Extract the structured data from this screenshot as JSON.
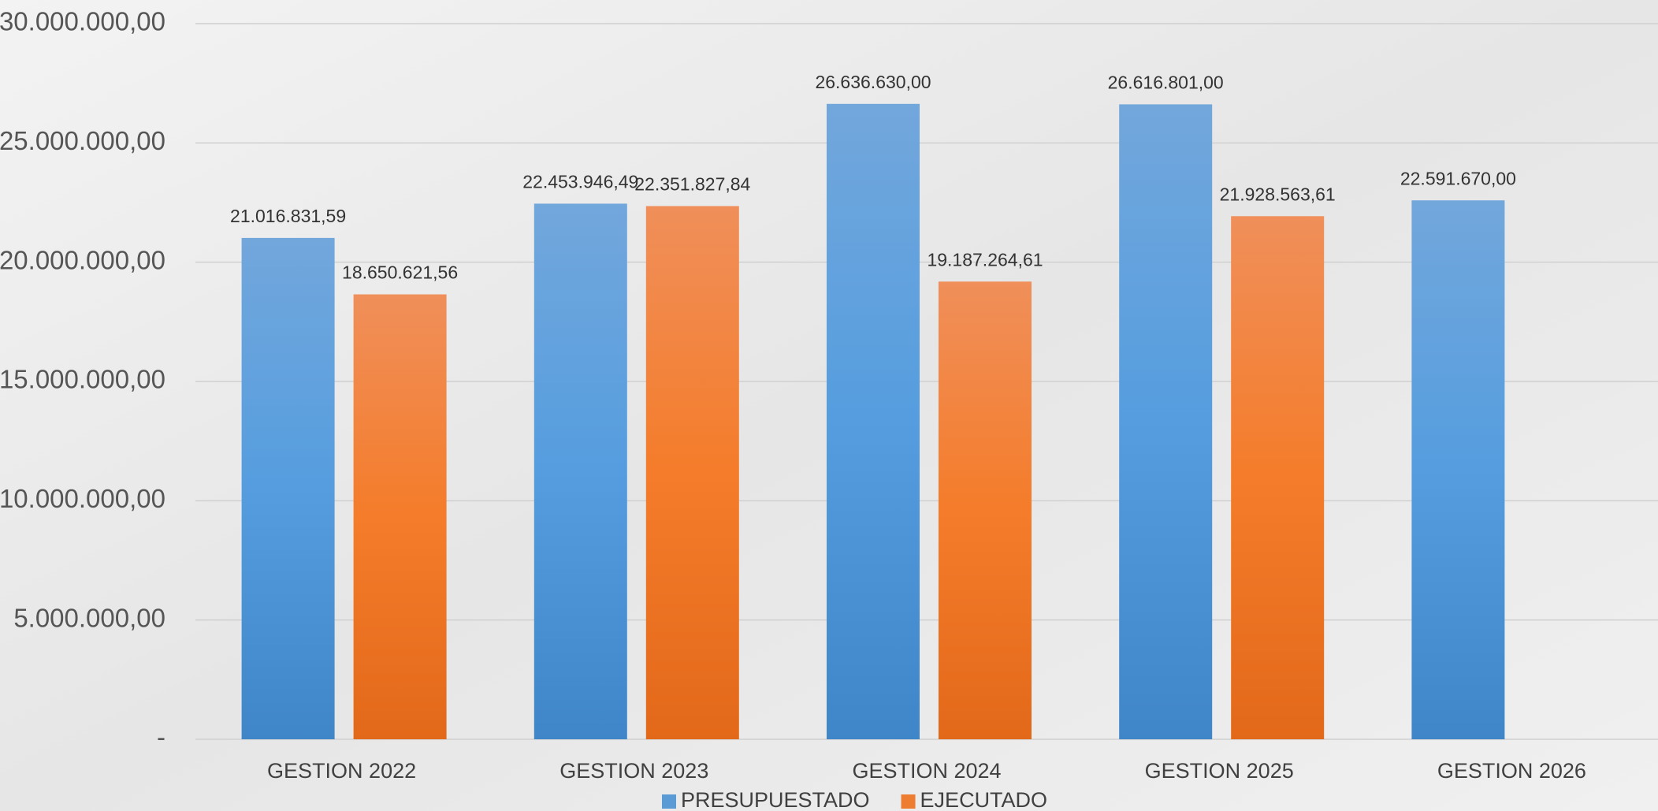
{
  "chart_data": {
    "type": "bar",
    "categories": [
      "GESTION 2022",
      "GESTION 2023",
      "GESTION 2024",
      "GESTION 2025",
      "GESTION 2026"
    ],
    "series": [
      {
        "name": "PRESUPUESTADO",
        "color": "#5b9bd5",
        "values": [
          21016831.59,
          22453946.49,
          26636630.0,
          26616801.0,
          22591670.0
        ],
        "value_labels": [
          "21.016.831,59",
          "22.453.946,49",
          "26.636.630,00",
          "26.616.801,00",
          "22.591.670,00"
        ]
      },
      {
        "name": "EJECUTADO",
        "color": "#ed7d31",
        "values": [
          18650621.56,
          22351827.84,
          19187264.61,
          21928563.61,
          null
        ],
        "value_labels": [
          "18.650.621,56",
          "22.351.827,84",
          "19.187.264,61",
          "21.928.563,61",
          null
        ]
      }
    ],
    "ylim": [
      0,
      30000000
    ],
    "yticks": [
      {
        "value": 0,
        "label": "-"
      },
      {
        "value": 5000000,
        "label": "5.000.000,00"
      },
      {
        "value": 10000000,
        "label": "10.000.000,00"
      },
      {
        "value": 15000000,
        "label": "15.000.000,00"
      },
      {
        "value": 20000000,
        "label": "20.000.000,00"
      },
      {
        "value": 25000000,
        "label": "25.000.000,00"
      },
      {
        "value": 30000000,
        "label": "30.000.000,00"
      }
    ],
    "grid": true,
    "legend": "bottom"
  }
}
